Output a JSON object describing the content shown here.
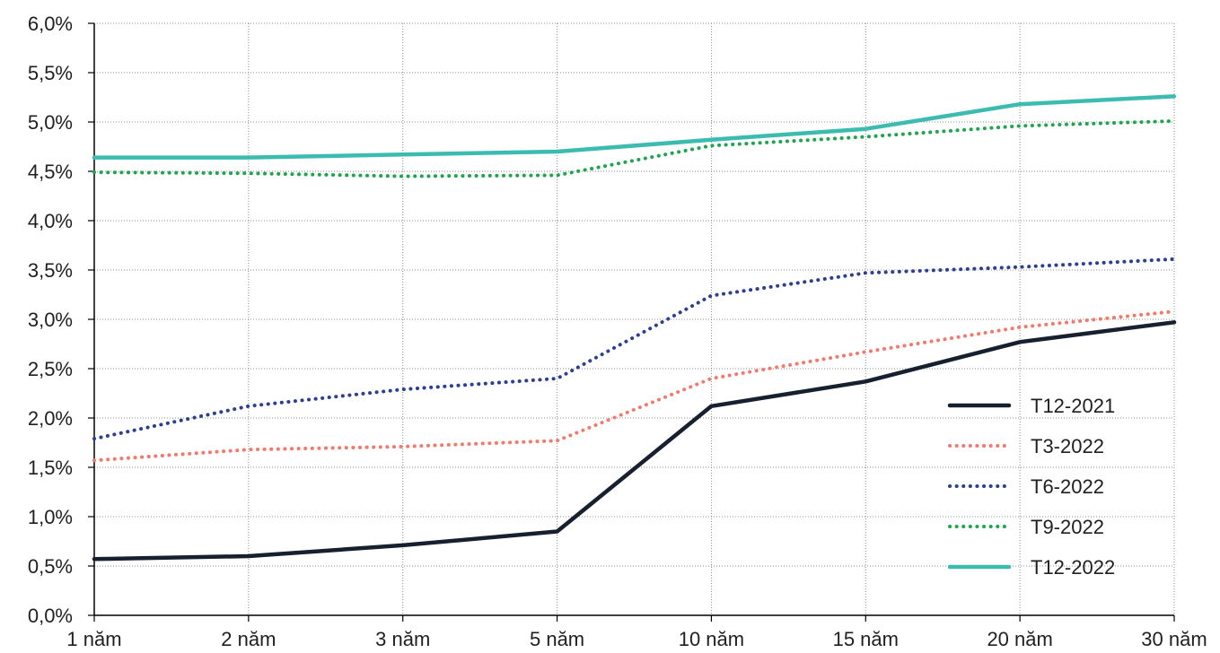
{
  "chart_data": {
    "type": "line",
    "title": "",
    "xlabel": "",
    "ylabel": "",
    "categories": [
      "1 năm",
      "2 năm",
      "3 năm",
      "5 năm",
      "10 năm",
      "15 năm",
      "20 năm",
      "30 năm"
    ],
    "y_ticks": [
      "0,0%",
      "0,5%",
      "1,0%",
      "1,5%",
      "2,0%",
      "2,5%",
      "3,0%",
      "3,5%",
      "4,0%",
      "4,5%",
      "5,0%",
      "5,5%",
      "6,0%"
    ],
    "ylim": [
      0,
      6
    ],
    "grid": true,
    "legend_position": "bottom-right",
    "series": [
      {
        "name": "T12-2021",
        "color": "#17202e",
        "style": "solid",
        "values": [
          0.57,
          0.6,
          0.71,
          0.85,
          2.12,
          2.37,
          2.77,
          2.97
        ]
      },
      {
        "name": "T3-2022",
        "color": "#f07a6e",
        "style": "dotted",
        "values": [
          1.57,
          1.68,
          1.71,
          1.77,
          2.4,
          2.67,
          2.92,
          3.08
        ]
      },
      {
        "name": "T6-2022",
        "color": "#2e3f8f",
        "style": "dotted",
        "values": [
          1.79,
          2.12,
          2.29,
          2.4,
          3.24,
          3.47,
          3.53,
          3.61
        ]
      },
      {
        "name": "T9-2022",
        "color": "#1fa550",
        "style": "dotted",
        "values": [
          4.49,
          4.48,
          4.45,
          4.46,
          4.76,
          4.85,
          4.96,
          5.01
        ]
      },
      {
        "name": "T12-2022",
        "color": "#3cbcb0",
        "style": "solid",
        "values": [
          4.64,
          4.64,
          4.67,
          4.7,
          4.82,
          4.93,
          5.18,
          5.26
        ]
      }
    ]
  }
}
